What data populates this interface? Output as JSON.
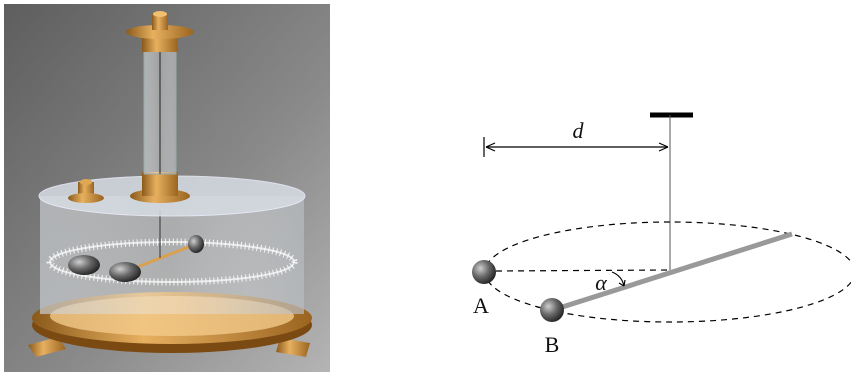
{
  "labels": {
    "distance": "d",
    "angle": "α",
    "ball_a": "A",
    "ball_b": "B"
  }
}
